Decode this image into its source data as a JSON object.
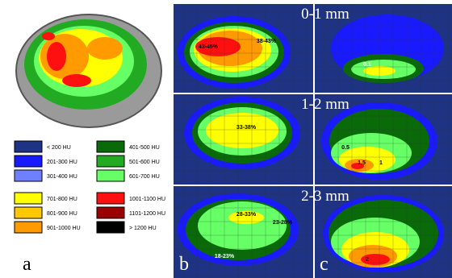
{
  "legend": [
    {
      "label": "< 200 HU",
      "color": "#1e3384"
    },
    {
      "label": "201-300 HU",
      "color": "#1a1aff"
    },
    {
      "label": "301-400 HU",
      "color": "#6f80ff"
    },
    {
      "label": "701-800 HU",
      "color": "#ffff00"
    },
    {
      "label": "801-900 HU",
      "color": "#ffc800"
    },
    {
      "label": "901-1000 HU",
      "color": "#ff9a00"
    },
    {
      "label": "401-500 HU",
      "color": "#0a6a0a"
    },
    {
      "label": "501-600 HU",
      "color": "#22aa22"
    },
    {
      "label": "601-700 HU",
      "color": "#66ff66"
    },
    {
      "label": "1001-1100 HU",
      "color": "#ff1010"
    },
    {
      "label": "1101-1200 HU",
      "color": "#990000"
    },
    {
      "label": "> 1200 HU",
      "color": "#000000"
    }
  ],
  "panels": {
    "a": "a",
    "b": "b",
    "c": "c"
  },
  "rows": [
    {
      "depth": "0-1 mm",
      "b_labels": [
        "43-45%",
        "38-43%"
      ],
      "c_labels": [
        "0.1"
      ]
    },
    {
      "depth": "1-2 mm",
      "b_labels": [
        "33-38%"
      ],
      "c_labels": [
        "0.5",
        "1.5",
        "1"
      ]
    },
    {
      "depth": "2-3 mm",
      "b_labels": [
        "28-33%",
        "23-28%",
        "18-23%"
      ],
      "c_labels": [
        "2"
      ]
    }
  ]
}
